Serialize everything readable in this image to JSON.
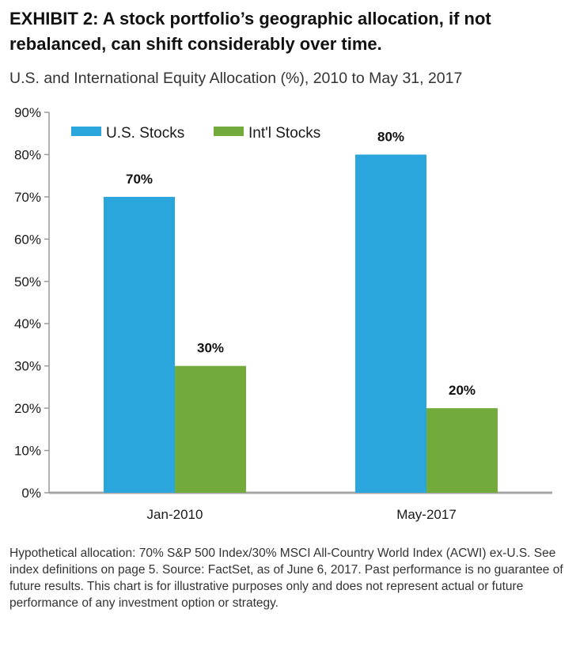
{
  "header": {
    "exhibit_title": "EXHIBIT 2: A stock portfolio’s geographic allocation, if not rebalanced, can shift considerably over time."
  },
  "chart_data": {
    "type": "bar",
    "title": "U.S. and International Equity Allocation (%), 2010 to May 31, 2017",
    "xlabel": "",
    "ylabel": "",
    "categories": [
      "Jan-2010",
      "May-2017"
    ],
    "series": [
      {
        "name": "U.S. Stocks",
        "values": [
          70,
          80
        ],
        "labels": [
          "70%",
          "80%"
        ],
        "color": "#2aa6dc"
      },
      {
        "name": "Int'l Stocks",
        "values": [
          30,
          20
        ],
        "labels": [
          "30%",
          "20%"
        ],
        "color": "#72aa3c"
      }
    ],
    "ylim": [
      0,
      90
    ],
    "yticks": [
      0,
      10,
      20,
      30,
      40,
      50,
      60,
      70,
      80,
      90
    ],
    "ytick_labels": [
      "0%",
      "10%",
      "20%",
      "30%",
      "40%",
      "50%",
      "60%",
      "70%",
      "80%",
      "90%"
    ],
    "grid": false,
    "legend_position": "top-left"
  },
  "footnote": "Hypothetical allocation: 70% S&P 500 Index/30% MSCI All-Country World Index (ACWI) ex-U.S. See index definitions on page 5. Source: FactSet, as of June 6, 2017. Past performance is no guarantee of future results. This chart is for illustrative purposes only and does not represent actual or future performance of any investment option or strategy."
}
